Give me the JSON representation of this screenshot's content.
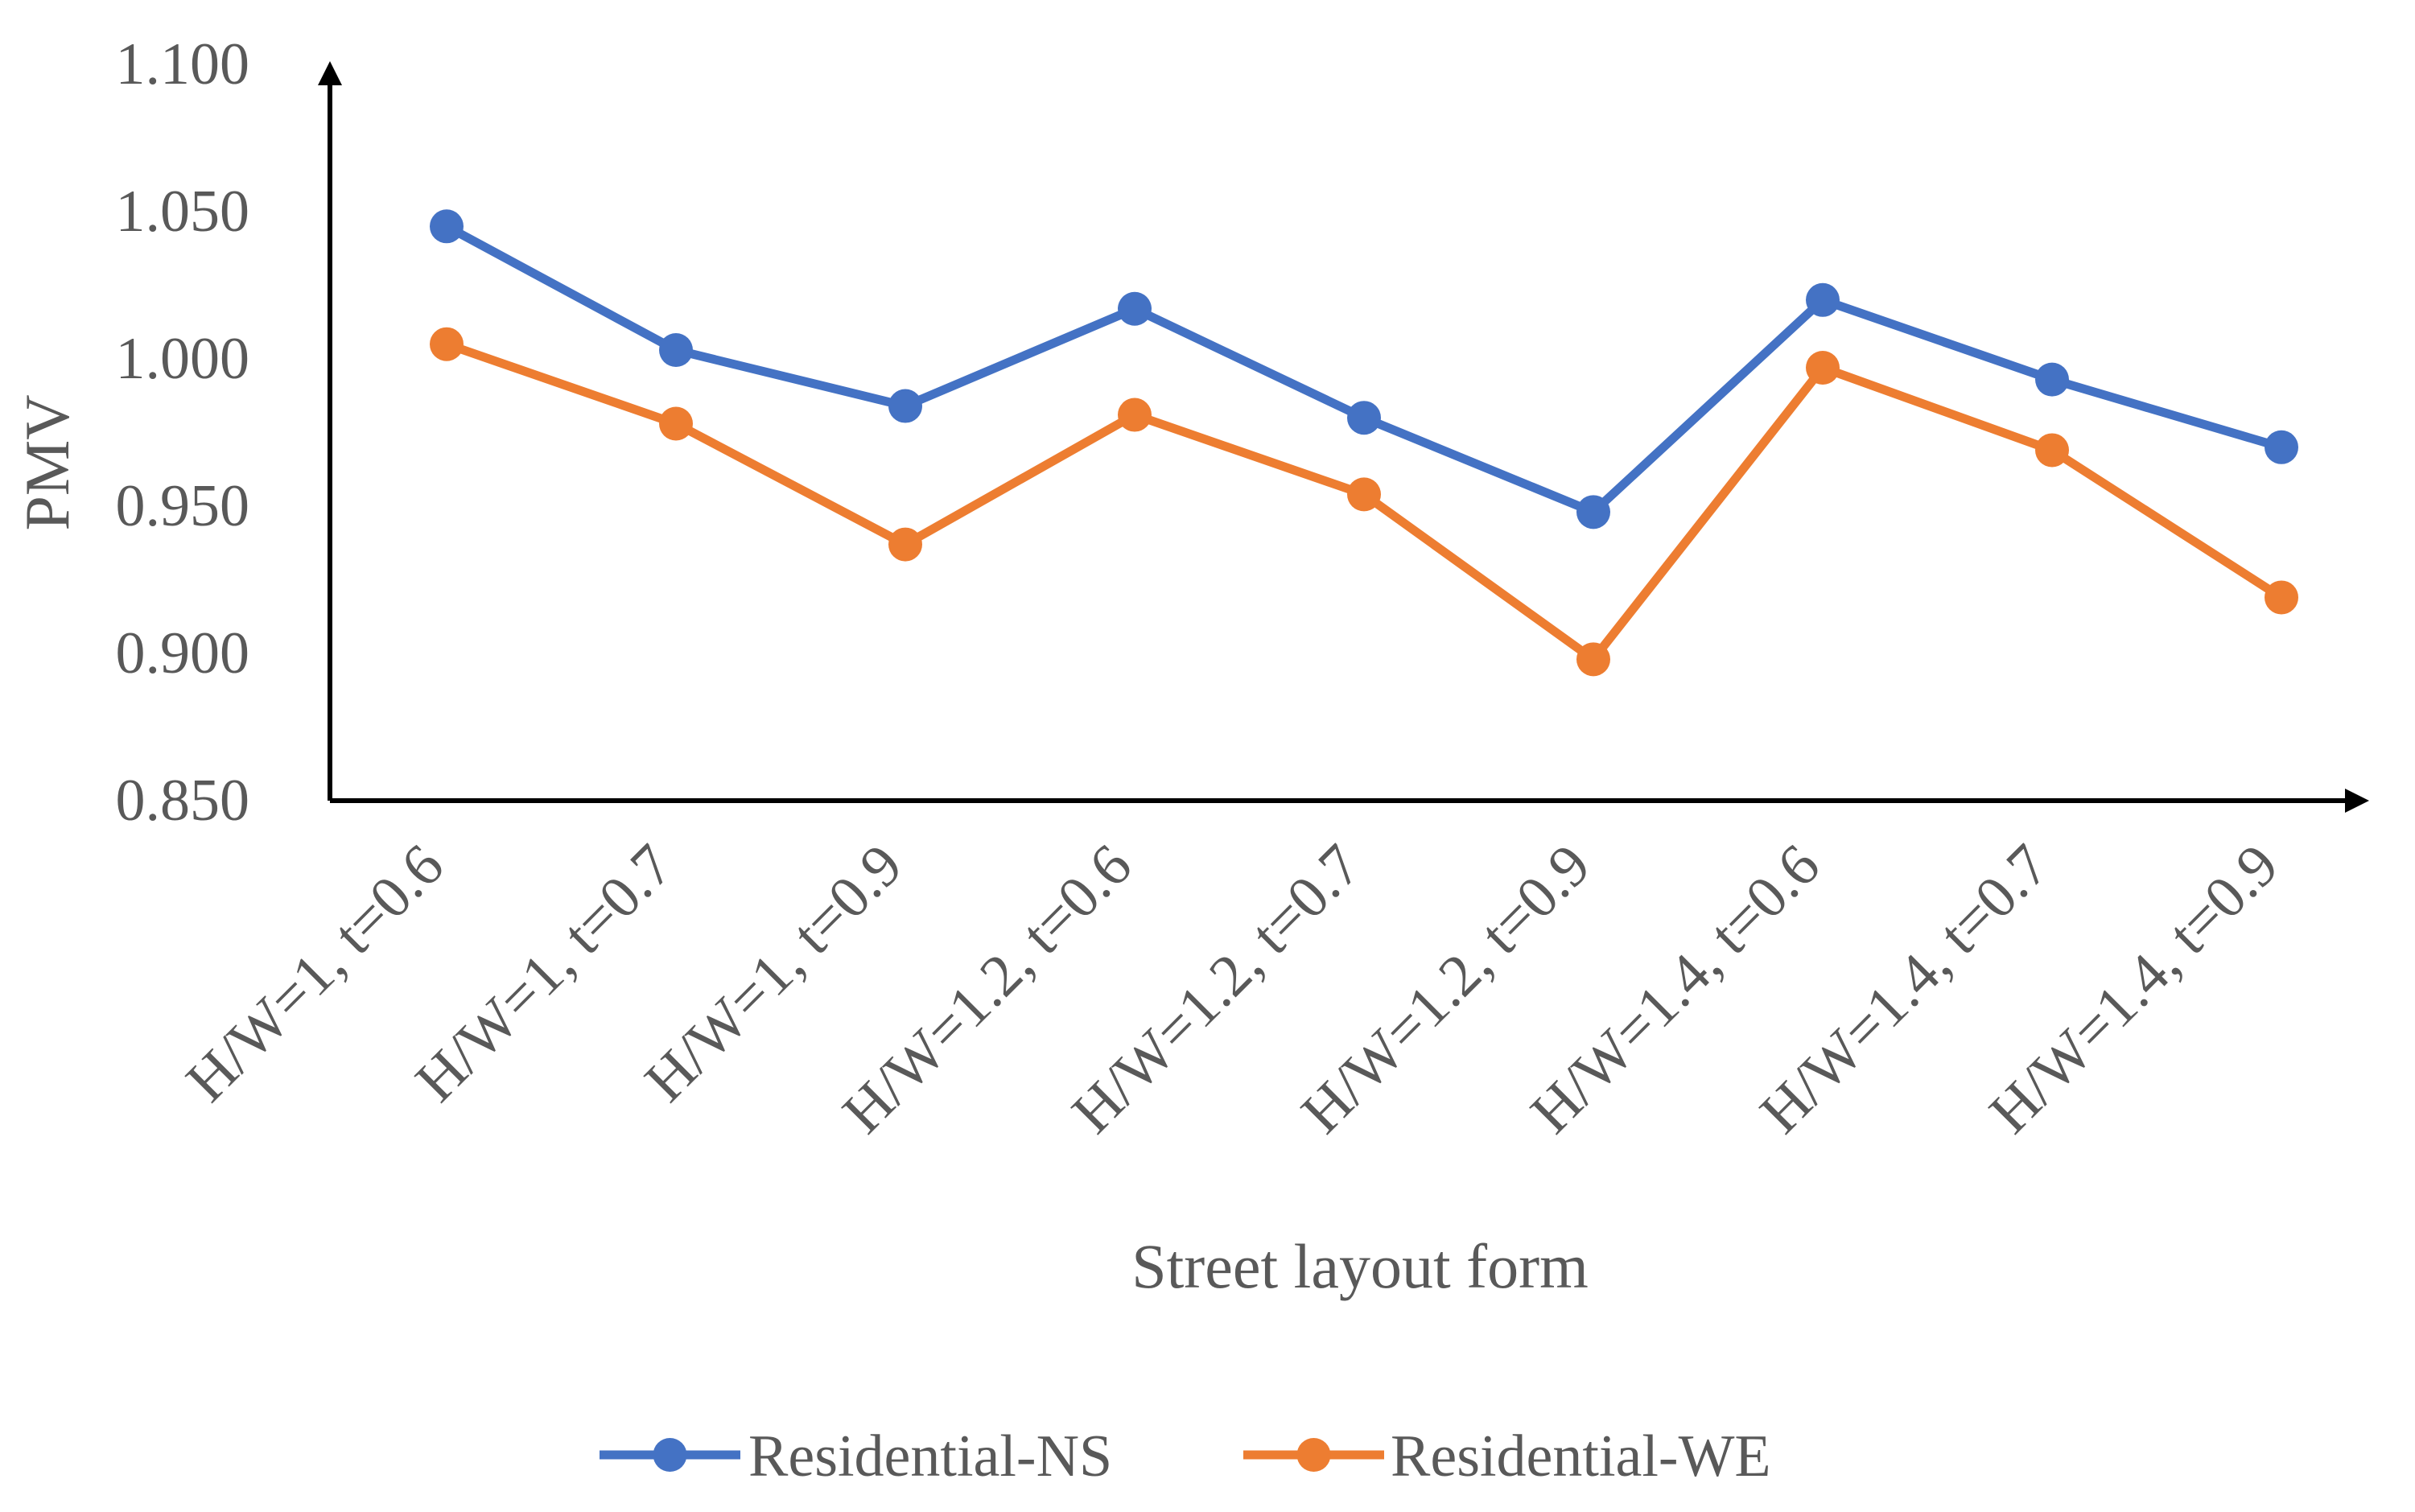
{
  "chart_data": {
    "type": "line",
    "title": "",
    "xlabel": "Street layout form",
    "ylabel": "PMV",
    "categories": [
      "H/W=1,  t=0.6",
      "H/W=1,  t=0.7",
      "H/W=1,  t=0.9",
      "H/W=1.2,  t=0.6",
      "H/W=1.2,  t=0.7",
      "H/W=1.2,  t=0.9",
      "H/W=1.4,  t=0.6",
      "H/W=1.4,  t=0.7",
      "H/W=1.4,  t=0.9"
    ],
    "series": [
      {
        "name": "Residential-NS",
        "color": "#4472C4",
        "values": [
          1.045,
          1.003,
          0.984,
          1.017,
          0.98,
          0.948,
          1.02,
          0.993,
          0.97
        ]
      },
      {
        "name": "Residential-WE",
        "color": "#ED7D31",
        "values": [
          1.005,
          0.978,
          0.937,
          0.981,
          0.954,
          0.898,
          0.997,
          0.969,
          0.919
        ]
      }
    ],
    "ylim": [
      0.85,
      1.1
    ],
    "yticks": [
      "0.850",
      "0.900",
      "0.950",
      "1.000",
      "1.050",
      "1.100"
    ],
    "grid": false,
    "legend_position": "bottom"
  }
}
